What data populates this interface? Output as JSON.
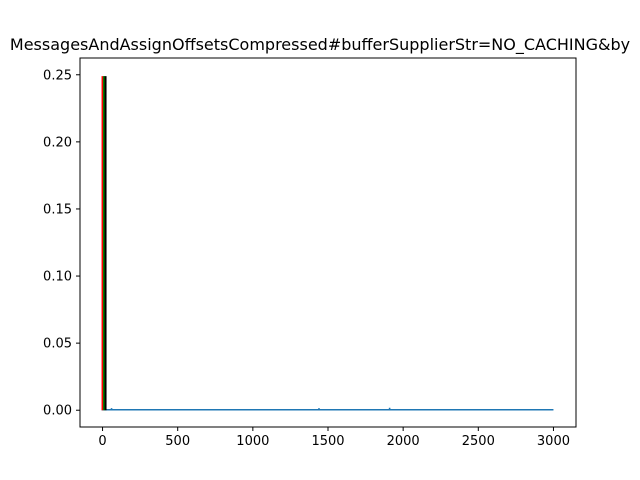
{
  "chart_data": {
    "type": "line",
    "title": "MessagesAndAssignOffsetsCompressed#bufferSupplierStr=NO_CACHING&by",
    "xlabel": "",
    "ylabel": "",
    "xlim": [
      -150,
      3150
    ],
    "ylim": [
      -0.0125,
      0.2625
    ],
    "xticks": [
      0,
      500,
      1000,
      1500,
      2000,
      2500,
      3000
    ],
    "xtick_labels": [
      "0",
      "500",
      "1000",
      "1500",
      "2000",
      "2500",
      "3000"
    ],
    "yticks": [
      0.0,
      0.05,
      0.1,
      0.15,
      0.2,
      0.25
    ],
    "ytick_labels": [
      "0.00",
      "0.05",
      "0.10",
      "0.15",
      "0.20",
      "0.25"
    ],
    "grid": false,
    "series": [
      {
        "color": "#1f77b4",
        "x_range": [
          0,
          3000
        ],
        "baseline": 0.0004,
        "spikes": [
          {
            "x": 0,
            "y": 0.0015
          },
          {
            "x": 15,
            "y": 0.002
          },
          {
            "x": 60,
            "y": 0.0015
          },
          {
            "x": 1440,
            "y": 0.0015
          },
          {
            "x": 1910,
            "y": 0.0018
          }
        ]
      }
    ],
    "vertical_lines": [
      {
        "x": 0,
        "y_top": 0.249,
        "color": "#ff0000"
      },
      {
        "x": 10,
        "y_top": 0.249,
        "color": "#008000"
      },
      {
        "x": 20,
        "y_top": 0.249,
        "color": "#000000"
      }
    ]
  }
}
